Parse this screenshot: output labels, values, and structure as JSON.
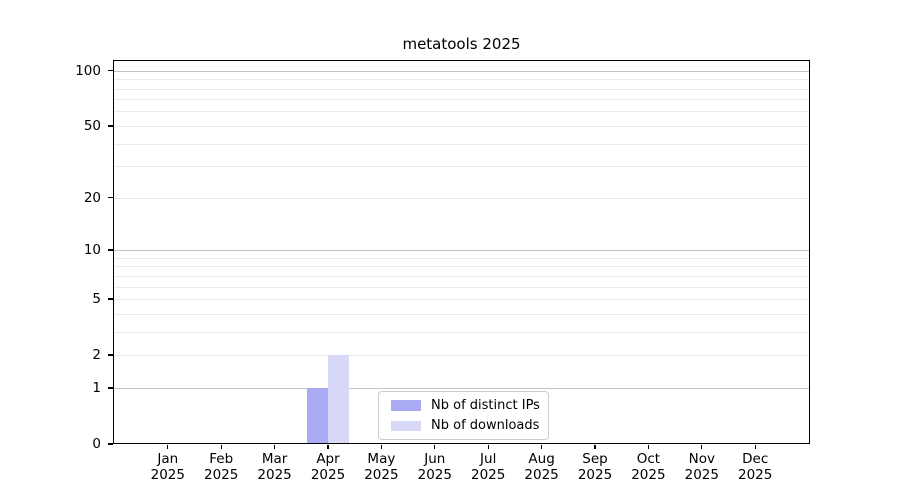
{
  "title": "metatools 2025",
  "chart_data": {
    "type": "bar",
    "title": "metatools 2025",
    "x_tick_labels": [
      {
        "month": "Jan",
        "year": "2025"
      },
      {
        "month": "Feb",
        "year": "2025"
      },
      {
        "month": "Mar",
        "year": "2025"
      },
      {
        "month": "Apr",
        "year": "2025"
      },
      {
        "month": "May",
        "year": "2025"
      },
      {
        "month": "Jun",
        "year": "2025"
      },
      {
        "month": "Jul",
        "year": "2025"
      },
      {
        "month": "Aug",
        "year": "2025"
      },
      {
        "month": "Sep",
        "year": "2025"
      },
      {
        "month": "Oct",
        "year": "2025"
      },
      {
        "month": "Nov",
        "year": "2025"
      },
      {
        "month": "Dec",
        "year": "2025"
      }
    ],
    "series": [
      {
        "name": "Nb of distinct IPs",
        "color": "#aaaaf4",
        "values": [
          0,
          0,
          0,
          1,
          0,
          0,
          0,
          0,
          0,
          0,
          0,
          0
        ]
      },
      {
        "name": "Nb of downloads",
        "color": "#d8d8f9",
        "values": [
          0,
          0,
          0,
          2,
          0,
          0,
          0,
          0,
          0,
          0,
          0,
          0
        ]
      }
    ],
    "y_scale": "log1p",
    "y_ticks": [
      0,
      1,
      2,
      5,
      10,
      20,
      50,
      100
    ],
    "y_limit_top": 115,
    "grid": {
      "major": [
        1,
        10,
        100
      ],
      "minor": [
        2,
        3,
        4,
        5,
        6,
        7,
        8,
        9,
        20,
        30,
        40,
        50,
        60,
        70,
        80,
        90
      ]
    },
    "legend_position": "lower center",
    "xlabel": "",
    "ylabel": ""
  },
  "colors": {
    "grid_major": "#c3c3c3",
    "grid_minor": "#eaeaea",
    "spine": "#000000",
    "text": "#000000",
    "background": "#ffffff"
  }
}
